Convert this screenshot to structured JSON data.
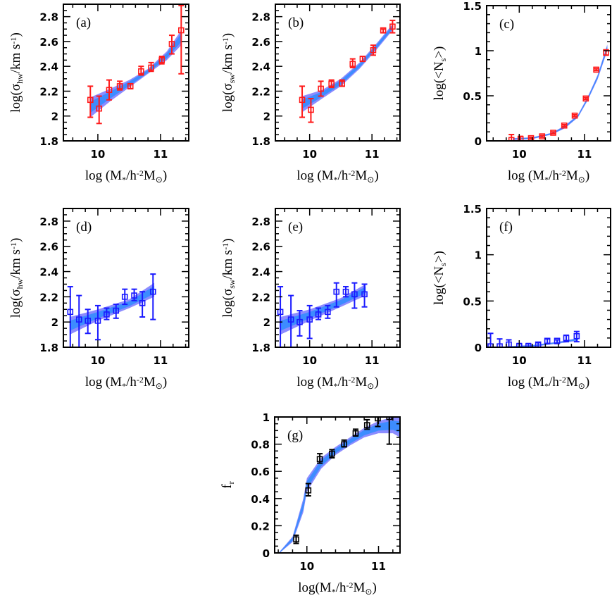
{
  "colors": {
    "red_points": "#ff1a1a",
    "blue_points": "#1a1aff",
    "black_points": "#000000",
    "band_outer": "#8c8cff",
    "band_inner": "#3d8cff"
  },
  "chart_data": [
    {
      "id": "a",
      "type": "scatter",
      "panel_label": "(a)",
      "xlabel": [
        {
          "t": "log (M"
        },
        {
          "t": "*",
          "sub": true
        },
        {
          "t": "/h"
        },
        {
          "t": "-2",
          "sup": true
        },
        {
          "t": "M"
        },
        {
          "t": "⊙",
          "sub": true
        },
        {
          "t": ")"
        }
      ],
      "ylabel": [
        {
          "t": "log(σ"
        },
        {
          "t": "hw",
          "sub": true
        },
        {
          "t": "/km s"
        },
        {
          "t": "-1",
          "sup": true
        },
        {
          "t": ")"
        }
      ],
      "xlim": [
        9.45,
        11.45
      ],
      "ylim": [
        1.8,
        2.9
      ],
      "xticks": [
        "10",
        "11"
      ],
      "yticks": [
        "1.8",
        "2",
        "2.2",
        "2.4",
        "2.6",
        "2.8"
      ],
      "marker_color": "red",
      "points": {
        "x": [
          9.88,
          10.02,
          10.18,
          10.35,
          10.52,
          10.69,
          10.85,
          11.02,
          11.18,
          11.33
        ],
        "y": [
          2.13,
          2.06,
          2.21,
          2.24,
          2.24,
          2.36,
          2.39,
          2.45,
          2.58,
          2.69
        ],
        "ylo": [
          1.99,
          1.94,
          2.13,
          2.21,
          2.22,
          2.33,
          2.36,
          2.42,
          2.5,
          2.34
        ],
        "yhi": [
          2.24,
          2.16,
          2.29,
          2.28,
          2.26,
          2.4,
          2.43,
          2.48,
          2.65,
          2.89
        ]
      },
      "band": {
        "x": [
          9.88,
          10.2,
          10.5,
          10.8,
          11.1,
          11.33
        ],
        "lo": [
          1.99,
          2.12,
          2.23,
          2.34,
          2.45,
          2.57
        ],
        "hi": [
          2.15,
          2.22,
          2.29,
          2.38,
          2.52,
          2.69
        ]
      }
    },
    {
      "id": "b",
      "type": "scatter",
      "panel_label": "(b)",
      "xlabel": [
        {
          "t": "log (M"
        },
        {
          "t": "*",
          "sub": true
        },
        {
          "t": "/h"
        },
        {
          "t": "-2",
          "sup": true
        },
        {
          "t": "M"
        },
        {
          "t": "⊙",
          "sub": true
        },
        {
          "t": ")"
        }
      ],
      "ylabel": [
        {
          "t": "log(σ"
        },
        {
          "t": "sw",
          "sub": true
        },
        {
          "t": "/km s"
        },
        {
          "t": "-1",
          "sup": true
        },
        {
          "t": ")"
        }
      ],
      "xlim": [
        9.45,
        11.45
      ],
      "ylim": [
        1.8,
        2.9
      ],
      "xticks": [
        "10",
        "11"
      ],
      "yticks": [
        "1.8",
        "2",
        "2.2",
        "2.4",
        "2.6",
        "2.8"
      ],
      "marker_color": "red",
      "points": {
        "x": [
          9.88,
          10.02,
          10.18,
          10.35,
          10.52,
          10.69,
          10.85,
          11.02,
          11.18,
          11.33
        ],
        "y": [
          2.13,
          2.05,
          2.22,
          2.26,
          2.26,
          2.42,
          2.46,
          2.53,
          2.69,
          2.72
        ],
        "ylo": [
          1.99,
          1.95,
          2.16,
          2.23,
          2.24,
          2.39,
          2.44,
          2.49,
          2.67,
          2.67
        ],
        "yhi": [
          2.24,
          2.14,
          2.28,
          2.29,
          2.29,
          2.46,
          2.48,
          2.57,
          2.7,
          2.77
        ]
      },
      "band": {
        "x": [
          9.88,
          10.2,
          10.5,
          10.8,
          11.1,
          11.33
        ],
        "lo": [
          2.03,
          2.14,
          2.24,
          2.38,
          2.55,
          2.69
        ],
        "hi": [
          2.16,
          2.21,
          2.3,
          2.43,
          2.6,
          2.74
        ]
      }
    },
    {
      "id": "c",
      "type": "scatter",
      "panel_label": "(c)",
      "xlabel": [
        {
          "t": "log (M"
        },
        {
          "t": "*",
          "sub": true
        },
        {
          "t": "/h"
        },
        {
          "t": "-2",
          "sup": true
        },
        {
          "t": "M"
        },
        {
          "t": "⊙",
          "sub": true
        },
        {
          "t": ")"
        }
      ],
      "ylabel": [
        {
          "t": "log(<N"
        },
        {
          "t": "s",
          "sub": true
        },
        {
          "t": ">)"
        }
      ],
      "xlim": [
        9.5,
        11.4
      ],
      "ylim": [
        0,
        1.5
      ],
      "xticks": [
        "10",
        "11"
      ],
      "yticks": [
        "0",
        "0.5",
        "1",
        "1.5"
      ],
      "marker_color": "red",
      "points": {
        "x": [
          9.88,
          10.02,
          10.18,
          10.35,
          10.52,
          10.69,
          10.85,
          11.02,
          11.18,
          11.33
        ],
        "y": [
          0.01,
          0.02,
          0.03,
          0.05,
          0.09,
          0.17,
          0.28,
          0.47,
          0.79,
          0.98
        ],
        "ylo": [
          0,
          0,
          0.02,
          0.04,
          0.08,
          0.16,
          0.27,
          0.46,
          0.78,
          0.95
        ],
        "yhi": [
          0.07,
          0.05,
          0.04,
          0.06,
          0.1,
          0.18,
          0.29,
          0.48,
          0.8,
          1.01
        ]
      },
      "band": {
        "x": [
          9.9,
          10.2,
          10.5,
          10.7,
          10.9,
          11.05,
          11.2,
          11.35
        ],
        "lo": [
          0.01,
          0.02,
          0.07,
          0.14,
          0.26,
          0.45,
          0.68,
          1.0
        ],
        "hi": [
          0.03,
          0.04,
          0.09,
          0.17,
          0.29,
          0.49,
          0.73,
          1.07
        ]
      }
    },
    {
      "id": "d",
      "type": "scatter",
      "panel_label": "(d)",
      "xlabel": [
        {
          "t": "log (M"
        },
        {
          "t": "*",
          "sub": true
        },
        {
          "t": "/h"
        },
        {
          "t": "-2",
          "sup": true
        },
        {
          "t": "M"
        },
        {
          "t": "⊙",
          "sub": true
        },
        {
          "t": ")"
        }
      ],
      "ylabel": [
        {
          "t": "log(σ"
        },
        {
          "t": "hw",
          "sub": true
        },
        {
          "t": "/km s"
        },
        {
          "t": "-1",
          "sup": true
        },
        {
          "t": ")"
        }
      ],
      "xlim": [
        9.45,
        11.45
      ],
      "ylim": [
        1.8,
        2.9
      ],
      "xticks": [
        "10",
        "11"
      ],
      "yticks": [
        "1.8",
        "2",
        "2.2",
        "2.4",
        "2.6",
        "2.8"
      ],
      "marker_color": "blue",
      "points": {
        "x": [
          9.56,
          9.7,
          9.84,
          10.0,
          10.14,
          10.29,
          10.43,
          10.58,
          10.71,
          10.88
        ],
        "y": [
          2.08,
          2.02,
          2.01,
          2.01,
          2.06,
          2.09,
          2.2,
          2.21,
          2.15,
          2.24
        ],
        "ylo": [
          1.8,
          1.8,
          1.91,
          1.86,
          2.02,
          2.03,
          2.14,
          2.17,
          2.04,
          2.02
        ],
        "yhi": [
          2.28,
          2.21,
          2.1,
          2.13,
          2.11,
          2.14,
          2.26,
          2.26,
          2.24,
          2.38
        ]
      },
      "band": {
        "x": [
          9.55,
          10.0,
          10.5,
          10.9
        ],
        "lo": [
          1.9,
          2.01,
          2.11,
          2.2
        ],
        "hi": [
          2.04,
          2.1,
          2.18,
          2.31
        ]
      }
    },
    {
      "id": "e",
      "type": "scatter",
      "panel_label": "(e)",
      "xlabel": [
        {
          "t": "log (M"
        },
        {
          "t": "*",
          "sub": true
        },
        {
          "t": "/h"
        },
        {
          "t": "-2",
          "sup": true
        },
        {
          "t": "M"
        },
        {
          "t": "⊙",
          "sub": true
        },
        {
          "t": ")"
        }
      ],
      "ylabel": [
        {
          "t": "log(σ"
        },
        {
          "t": "sw",
          "sub": true
        },
        {
          "t": "/km s"
        },
        {
          "t": "-1",
          "sup": true
        },
        {
          "t": ")"
        }
      ],
      "xlim": [
        9.45,
        11.45
      ],
      "ylim": [
        1.8,
        2.9
      ],
      "xticks": [
        "10",
        "11"
      ],
      "yticks": [
        "1.8",
        "2",
        "2.2",
        "2.4",
        "2.6",
        "2.8"
      ],
      "marker_color": "blue",
      "points": {
        "x": [
          9.53,
          9.7,
          9.84,
          10.0,
          10.14,
          10.29,
          10.43,
          10.58,
          10.72,
          10.88
        ],
        "y": [
          2.08,
          2.02,
          2.0,
          2.02,
          2.06,
          2.08,
          2.24,
          2.24,
          2.22,
          2.22
        ],
        "ylo": [
          1.8,
          1.8,
          1.89,
          1.87,
          2.02,
          2.03,
          2.12,
          2.2,
          2.11,
          2.12
        ],
        "yhi": [
          2.28,
          2.21,
          2.09,
          2.13,
          2.11,
          2.13,
          2.31,
          2.28,
          2.31,
          2.3
        ]
      },
      "band": {
        "x": [
          9.53,
          10.0,
          10.5,
          10.9
        ],
        "lo": [
          1.9,
          2.01,
          2.12,
          2.21
        ],
        "hi": [
          2.04,
          2.1,
          2.19,
          2.3
        ]
      }
    },
    {
      "id": "f",
      "type": "scatter",
      "panel_label": "(f)",
      "xlabel": [
        {
          "t": "log (M"
        },
        {
          "t": "*",
          "sub": true
        },
        {
          "t": "/h"
        },
        {
          "t": "-2",
          "sup": true
        },
        {
          "t": "M"
        },
        {
          "t": "⊙",
          "sub": true
        },
        {
          "t": ")"
        }
      ],
      "ylabel": [
        {
          "t": "log(<N"
        },
        {
          "t": "s",
          "sub": true
        },
        {
          "t": ">)"
        }
      ],
      "xlim": [
        9.5,
        11.4
      ],
      "ylim": [
        0,
        1.5
      ],
      "xticks": [
        "10",
        "11"
      ],
      "yticks": [
        "0",
        "0.5",
        "1",
        "1.5"
      ],
      "marker_color": "blue",
      "points": {
        "x": [
          9.56,
          9.7,
          9.84,
          10.0,
          10.14,
          10.29,
          10.43,
          10.58,
          10.72,
          10.88
        ],
        "y": [
          0.01,
          0.01,
          0.03,
          0.01,
          0.01,
          0.03,
          0.07,
          0.07,
          0.1,
          0.12
        ],
        "ylo": [
          0,
          0,
          0,
          0,
          0,
          0,
          0.04,
          0.04,
          0.06,
          0.06
        ],
        "yhi": [
          0.15,
          0.09,
          0.08,
          0.04,
          0.04,
          0.05,
          0.09,
          0.08,
          0.13,
          0.17
        ]
      },
      "band": {
        "x": [
          9.8,
          10.2,
          10.6,
          10.9
        ],
        "lo": [
          0,
          0.005,
          0.04,
          0.07
        ],
        "hi": [
          0.01,
          0.025,
          0.06,
          0.1
        ]
      }
    },
    {
      "id": "g",
      "type": "scatter",
      "panel_label": "(g)",
      "xlabel": [
        {
          "t": "log(M"
        },
        {
          "t": "*",
          "sub": true
        },
        {
          "t": "/h"
        },
        {
          "t": "-2",
          "sup": true
        },
        {
          "t": "M"
        },
        {
          "t": "⊙",
          "sub": true
        },
        {
          "t": ")"
        }
      ],
      "ylabel": [
        {
          "t": "f"
        },
        {
          "t": "r",
          "sub": true
        }
      ],
      "xlim": [
        9.55,
        11.3
      ],
      "ylim": [
        0,
        1
      ],
      "xticks": [
        "10",
        "11"
      ],
      "yticks": [
        "0",
        "0.2",
        "0.4",
        "0.6",
        "0.8",
        "1"
      ],
      "marker_color": "black",
      "points": {
        "x": [
          9.85,
          10.02,
          10.18,
          10.35,
          10.52,
          10.68,
          10.84,
          10.99,
          11.15
        ],
        "y": [
          0.1,
          0.46,
          0.69,
          0.73,
          0.8,
          0.88,
          0.94,
          0.99,
          1.0
        ],
        "ylo": [
          0.07,
          0.42,
          0.66,
          0.7,
          0.78,
          0.86,
          0.91,
          0.93,
          0.8
        ],
        "yhi": [
          0.13,
          0.51,
          0.73,
          0.76,
          0.83,
          0.91,
          0.98,
          1.0,
          1.0
        ]
      },
      "band": {
        "x": [
          9.62,
          9.8,
          9.95,
          10.0,
          10.2,
          10.4,
          10.6,
          10.8,
          11.0,
          11.2,
          11.3
        ],
        "lo": [
          0,
          0.08,
          0.3,
          0.45,
          0.62,
          0.72,
          0.79,
          0.85,
          0.88,
          0.88,
          0.85
        ],
        "hi": [
          0.01,
          0.12,
          0.4,
          0.55,
          0.7,
          0.78,
          0.85,
          0.92,
          0.97,
          1.0,
          1.0
        ]
      }
    }
  ]
}
